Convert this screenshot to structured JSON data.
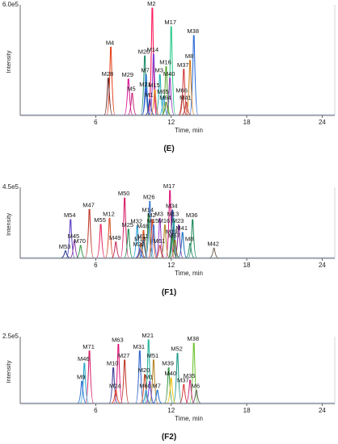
{
  "chart_data": [
    {
      "type": "line",
      "panel_label": "(E)",
      "ymax_label": "6.0e5",
      "ylabel": "Intensity",
      "xlabel": "Time, min",
      "xlim": [
        0,
        25
      ],
      "x_ticks": [
        6,
        12,
        18,
        24
      ],
      "ylim": [
        0,
        6.0
      ],
      "ytop": 6.0,
      "peaks": [
        {
          "label": "M2",
          "x": 10.5,
          "y": 6.05,
          "color": "#ff1a5e"
        },
        {
          "label": "M17",
          "x": 12.0,
          "y": 5.0,
          "color": "#28c98a"
        },
        {
          "label": "M38",
          "x": 13.8,
          "y": 4.5,
          "color": "#2f6fd6"
        },
        {
          "label": "M4",
          "x": 7.2,
          "y": 3.85,
          "color": "#e6451f"
        },
        {
          "label": "M20",
          "x": 9.9,
          "y": 3.35,
          "color": "#1f8f6b"
        },
        {
          "label": "M14",
          "x": 10.6,
          "y": 3.45,
          "color": "#7a3fd8"
        },
        {
          "label": "M8",
          "x": 13.5,
          "y": 3.1,
          "color": "#d27a1a"
        },
        {
          "label": "M16",
          "x": 11.6,
          "y": 2.75,
          "color": "#5aa832"
        },
        {
          "label": "M37",
          "x": 13.0,
          "y": 2.6,
          "color": "#d43c3c"
        },
        {
          "label": "M7",
          "x": 10.0,
          "y": 2.3,
          "color": "#1a6fd0"
        },
        {
          "label": "M3",
          "x": 11.1,
          "y": 2.3,
          "color": "#20b3b3"
        },
        {
          "label": "M40",
          "x": 11.9,
          "y": 2.1,
          "color": "#9b3ac2"
        },
        {
          "label": "M28",
          "x": 7.0,
          "y": 2.1,
          "color": "#6a2a2a"
        },
        {
          "label": "M29",
          "x": 8.6,
          "y": 2.05,
          "color": "#d81b9a"
        },
        {
          "label": "M21",
          "x": 10.0,
          "y": 1.5,
          "color": "#3b5bd6"
        },
        {
          "label": "M15",
          "x": 10.7,
          "y": 1.45,
          "color": "#e08a1e"
        },
        {
          "label": "M5",
          "x": 8.9,
          "y": 1.25,
          "color": "#c72b7a"
        },
        {
          "label": "M65",
          "x": 11.4,
          "y": 1.1,
          "color": "#2aa0d8"
        },
        {
          "label": "M66",
          "x": 12.9,
          "y": 1.15,
          "color": "#b5382f"
        },
        {
          "label": "M1",
          "x": 10.3,
          "y": 0.9,
          "color": "#3c3c9a"
        },
        {
          "label": "M64",
          "x": 11.6,
          "y": 0.75,
          "color": "#6b8e23"
        },
        {
          "label": "M41",
          "x": 13.2,
          "y": 0.75,
          "color": "#c0392b"
        }
      ]
    },
    {
      "type": "line",
      "panel_label": "(F1)",
      "ymax_label": "4.5e5",
      "ylabel": "Intensity",
      "xlabel": "Time, min",
      "xlim": [
        0,
        25
      ],
      "x_ticks": [
        6,
        12,
        18,
        24
      ],
      "ylim": [
        0,
        4.5
      ],
      "ytop": 4.5,
      "peaks": [
        {
          "label": "M17",
          "x": 11.9,
          "y": 5.0,
          "color": "#e0177a"
        },
        {
          "label": "M50",
          "x": 8.3,
          "y": 4.45,
          "color": "#d61f69"
        },
        {
          "label": "M26",
          "x": 10.3,
          "y": 4.2,
          "color": "#3a7bd5"
        },
        {
          "label": "M34",
          "x": 12.1,
          "y": 3.55,
          "color": "#1f3f8f"
        },
        {
          "label": "M47",
          "x": 5.5,
          "y": 3.6,
          "color": "#c0392b"
        },
        {
          "label": "M14",
          "x": 10.2,
          "y": 3.25,
          "color": "#2f8f3f"
        },
        {
          "label": "M12",
          "x": 7.1,
          "y": 2.95,
          "color": "#d94f2a"
        },
        {
          "label": "M2",
          "x": 10.5,
          "y": 2.85,
          "color": "#e6451f"
        },
        {
          "label": "M3",
          "x": 11.1,
          "y": 2.95,
          "color": "#9b3ac2"
        },
        {
          "label": "M13",
          "x": 12.2,
          "y": 2.95,
          "color": "#27a3a3"
        },
        {
          "label": "M54",
          "x": 4.0,
          "y": 2.85,
          "color": "#5a3fbf"
        },
        {
          "label": "M36",
          "x": 13.7,
          "y": 2.85,
          "color": "#1e8a5a"
        },
        {
          "label": "M55",
          "x": 6.4,
          "y": 2.5,
          "color": "#e8245e"
        },
        {
          "label": "M15",
          "x": 10.6,
          "y": 2.45,
          "color": "#3b6fd6"
        },
        {
          "label": "M16",
          "x": 11.5,
          "y": 2.45,
          "color": "#b0842a"
        },
        {
          "label": "M23",
          "x": 12.6,
          "y": 2.45,
          "color": "#7f2a9a"
        },
        {
          "label": "M32",
          "x": 9.3,
          "y": 2.4,
          "color": "#2aa0d8"
        },
        {
          "label": "M25",
          "x": 8.6,
          "y": 2.15,
          "color": "#1a8f4f"
        },
        {
          "label": "M48",
          "x": 9.8,
          "y": 2.05,
          "color": "#d6521e"
        },
        {
          "label": "M41",
          "x": 12.9,
          "y": 1.9,
          "color": "#1f6fbf"
        },
        {
          "label": "M19",
          "x": 12.1,
          "y": 1.65,
          "color": "#3d9a2f"
        },
        {
          "label": "M45",
          "x": 4.3,
          "y": 1.3,
          "color": "#8e44ad"
        },
        {
          "label": "M49",
          "x": 7.6,
          "y": 1.2,
          "color": "#c7305f"
        },
        {
          "label": "M11",
          "x": 9.8,
          "y": 1.3,
          "color": "#2e86c1"
        },
        {
          "label": "M67",
          "x": 12.3,
          "y": 1.35,
          "color": "#8a6d1a"
        },
        {
          "label": "M18",
          "x": 9.6,
          "y": 1.1,
          "color": "#a0522d"
        },
        {
          "label": "M8",
          "x": 13.5,
          "y": 1.1,
          "color": "#2c8f6c"
        },
        {
          "label": "M42",
          "x": 15.4,
          "y": 0.75,
          "color": "#7a6a5a"
        },
        {
          "label": "M70",
          "x": 4.8,
          "y": 0.95,
          "color": "#3b9a4a"
        },
        {
          "label": "M61",
          "x": 11.1,
          "y": 0.95,
          "color": "#c43c3c"
        },
        {
          "label": "M22",
          "x": 9.5,
          "y": 0.7,
          "color": "#4a5ad6"
        },
        {
          "label": "M53",
          "x": 3.6,
          "y": 0.55,
          "color": "#2f3f8f"
        }
      ]
    },
    {
      "type": "line",
      "panel_label": "(F2)",
      "ymax_label": "2.5e5",
      "ylabel": "Intensity",
      "xlabel": "Time, min",
      "xlim": [
        0,
        25
      ],
      "x_ticks": [
        6,
        12,
        18,
        24
      ],
      "ylim": [
        0,
        2.5
      ],
      "ytop": 2.5,
      "peaks": [
        {
          "label": "M21",
          "x": 10.2,
          "y": 2.85,
          "color": "#1fb39a"
        },
        {
          "label": "M63",
          "x": 7.8,
          "y": 2.65,
          "color": "#e0177a"
        },
        {
          "label": "M38",
          "x": 13.8,
          "y": 2.7,
          "color": "#6bc42e"
        },
        {
          "label": "M71",
          "x": 5.5,
          "y": 2.35,
          "color": "#d61f69"
        },
        {
          "label": "M31",
          "x": 9.5,
          "y": 2.35,
          "color": "#2a5fc8"
        },
        {
          "label": "M52",
          "x": 12.5,
          "y": 2.25,
          "color": "#1f9a8a"
        },
        {
          "label": "M27",
          "x": 8.3,
          "y": 1.95,
          "color": "#c0392b"
        },
        {
          "label": "M51",
          "x": 10.6,
          "y": 1.95,
          "color": "#b5862a"
        },
        {
          "label": "M46",
          "x": 5.1,
          "y": 1.8,
          "color": "#27a3c8"
        },
        {
          "label": "M10",
          "x": 7.4,
          "y": 1.6,
          "color": "#3c3c9a"
        },
        {
          "label": "M39",
          "x": 11.8,
          "y": 1.6,
          "color": "#3b9a4a"
        },
        {
          "label": "M20",
          "x": 9.9,
          "y": 1.3,
          "color": "#d94f2a"
        },
        {
          "label": "M40",
          "x": 12.0,
          "y": 1.15,
          "color": "#f0c20f"
        },
        {
          "label": "M1",
          "x": 10.3,
          "y": 1.0,
          "color": "#7a3fd8"
        },
        {
          "label": "M9",
          "x": 4.9,
          "y": 1.0,
          "color": "#2f6fd6"
        },
        {
          "label": "M35",
          "x": 13.5,
          "y": 1.05,
          "color": "#c72b7a"
        },
        {
          "label": "M37",
          "x": 13.0,
          "y": 0.85,
          "color": "#d43c3c"
        },
        {
          "label": "M24",
          "x": 7.6,
          "y": 0.6,
          "color": "#e6451f"
        },
        {
          "label": "M60",
          "x": 10.0,
          "y": 0.6,
          "color": "#2aa0d8"
        },
        {
          "label": "M7",
          "x": 10.9,
          "y": 0.6,
          "color": "#1a6fd0"
        },
        {
          "label": "M6",
          "x": 14.0,
          "y": 0.6,
          "color": "#6b6b6b"
        }
      ]
    }
  ]
}
